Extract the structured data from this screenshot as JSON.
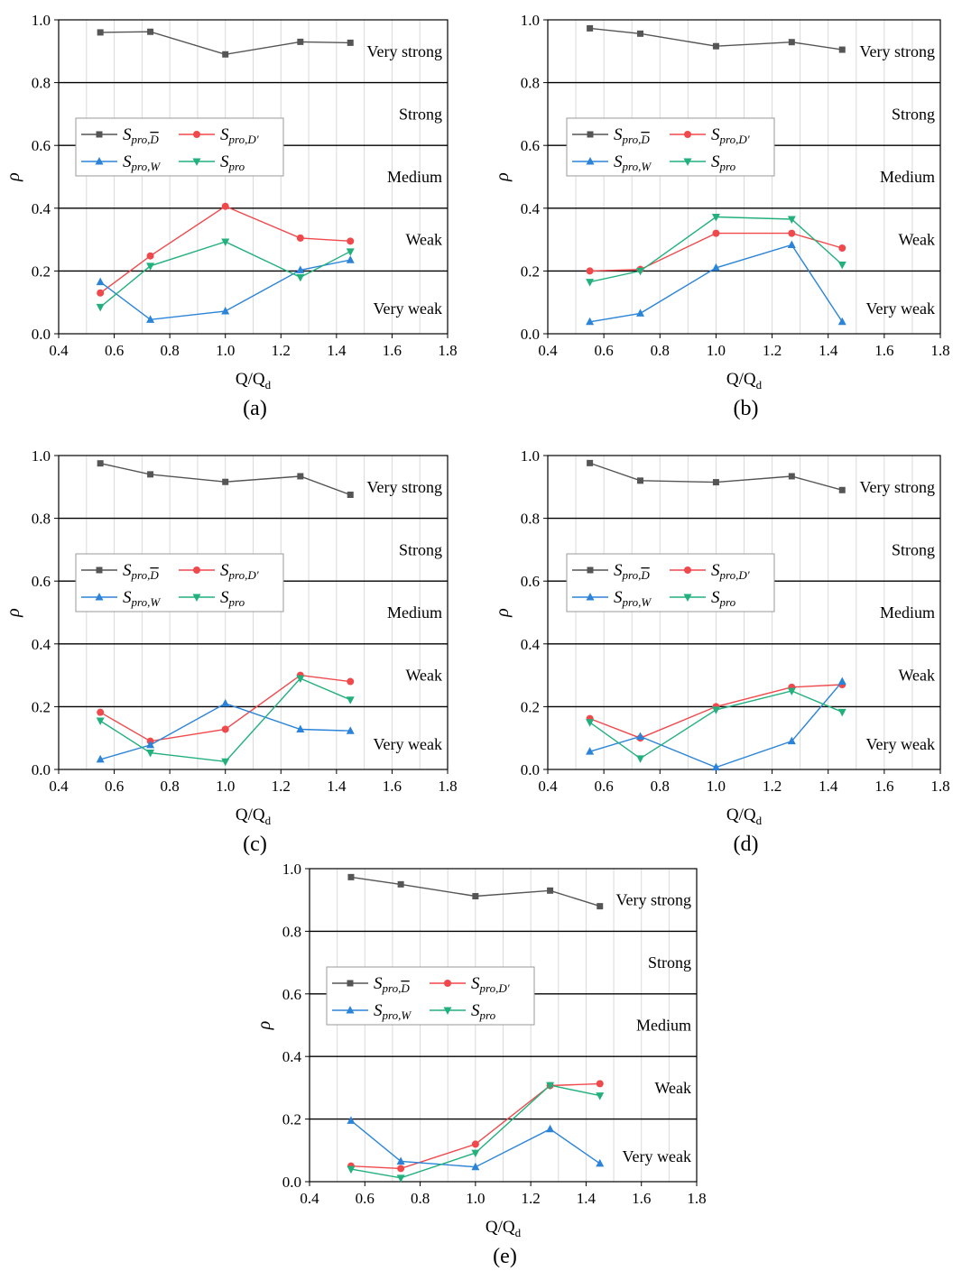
{
  "colors": {
    "s_dbar": "#555555",
    "s_dprime": "#f0494c",
    "s_w": "#2b84d8",
    "s_pro": "#22b07d",
    "band_line": "#000000",
    "grid": "#d9d9d9"
  },
  "legend": [
    {
      "key": "s_dbar",
      "marker": "square",
      "base": "S",
      "sub": "pro,",
      "subtail": "D",
      "overline": true
    },
    {
      "key": "s_dprime",
      "marker": "circle",
      "base": "S",
      "sub": "pro,D'",
      "subtail": "",
      "overline": false
    },
    {
      "key": "s_w",
      "marker": "triangle-up",
      "base": "S",
      "sub": "pro,W",
      "subtail": "",
      "overline": false
    },
    {
      "key": "s_pro",
      "marker": "triangle-down",
      "base": "S",
      "sub": "pro",
      "subtail": "",
      "overline": false
    }
  ],
  "chart_data": [
    {
      "type": "line",
      "panel_label": "(a)",
      "xlabel": "Q/Q",
      "xlabel_sub": "d",
      "ylabel": "ρ",
      "xlim": [
        0.4,
        1.8
      ],
      "ylim": [
        0.0,
        1.0
      ],
      "xticks": [
        "0.4",
        "0.6",
        "0.8",
        "1.0",
        "1.2",
        "1.4",
        "1.6",
        "1.8"
      ],
      "yticks": [
        "0.0",
        "0.2",
        "0.4",
        "0.6",
        "0.8",
        "1.0"
      ],
      "bands": [
        {
          "label": "Very strong",
          "y": 0.9
        },
        {
          "label": "Strong",
          "y": 0.7
        },
        {
          "label": "Medium",
          "y": 0.5
        },
        {
          "label": "Weak",
          "y": 0.3
        },
        {
          "label": "Very weak",
          "y": 0.08
        }
      ],
      "band_thresholds": [
        0.2,
        0.4,
        0.6,
        0.8
      ],
      "x": [
        0.55,
        0.73,
        1.0,
        1.27,
        1.45
      ],
      "series": [
        {
          "key": "s_dbar",
          "values": [
            0.96,
            0.962,
            0.89,
            0.93,
            0.927
          ]
        },
        {
          "key": "s_dprime",
          "values": [
            0.13,
            0.248,
            0.406,
            0.305,
            0.295
          ]
        },
        {
          "key": "s_w",
          "values": [
            0.165,
            0.045,
            0.072,
            0.203,
            0.235
          ]
        },
        {
          "key": "s_pro",
          "values": [
            0.085,
            0.216,
            0.293,
            0.18,
            0.262
          ]
        }
      ]
    },
    {
      "type": "line",
      "panel_label": "(b)",
      "xlabel": "Q/Q",
      "xlabel_sub": "d",
      "ylabel": "ρ",
      "xlim": [
        0.4,
        1.8
      ],
      "ylim": [
        0.0,
        1.0
      ],
      "xticks": [
        "0.4",
        "0.6",
        "0.8",
        "1.0",
        "1.2",
        "1.4",
        "1.6",
        "1.8"
      ],
      "yticks": [
        "0.0",
        "0.2",
        "0.4",
        "0.6",
        "0.8",
        "1.0"
      ],
      "bands": [
        {
          "label": "Very strong",
          "y": 0.9
        },
        {
          "label": "Strong",
          "y": 0.7
        },
        {
          "label": "Medium",
          "y": 0.5
        },
        {
          "label": "Weak",
          "y": 0.3
        },
        {
          "label": "Very weak",
          "y": 0.08
        }
      ],
      "band_thresholds": [
        0.2,
        0.4,
        0.6,
        0.8
      ],
      "x": [
        0.55,
        0.73,
        1.0,
        1.27,
        1.45
      ],
      "series": [
        {
          "key": "s_dbar",
          "values": [
            0.973,
            0.956,
            0.916,
            0.929,
            0.905
          ]
        },
        {
          "key": "s_dprime",
          "values": [
            0.2,
            0.205,
            0.32,
            0.32,
            0.273
          ]
        },
        {
          "key": "s_w",
          "values": [
            0.038,
            0.065,
            0.21,
            0.283,
            0.038
          ]
        },
        {
          "key": "s_pro",
          "values": [
            0.165,
            0.2,
            0.372,
            0.365,
            0.22
          ]
        }
      ]
    },
    {
      "type": "line",
      "panel_label": "(c)",
      "xlabel": "Q/Q",
      "xlabel_sub": "d",
      "ylabel": "ρ",
      "xlim": [
        0.4,
        1.8
      ],
      "ylim": [
        0.0,
        1.0
      ],
      "xticks": [
        "0.4",
        "0.6",
        "0.8",
        "1.0",
        "1.2",
        "1.4",
        "1.6",
        "1.8"
      ],
      "yticks": [
        "0.0",
        "0.2",
        "0.4",
        "0.6",
        "0.8",
        "1.0"
      ],
      "bands": [
        {
          "label": "Very strong",
          "y": 0.9
        },
        {
          "label": "Strong",
          "y": 0.7
        },
        {
          "label": "Medium",
          "y": 0.5
        },
        {
          "label": "Weak",
          "y": 0.3
        },
        {
          "label": "Very weak",
          "y": 0.08
        }
      ],
      "band_thresholds": [
        0.2,
        0.4,
        0.6,
        0.8
      ],
      "x": [
        0.55,
        0.73,
        1.0,
        1.27,
        1.45
      ],
      "series": [
        {
          "key": "s_dbar",
          "values": [
            0.975,
            0.94,
            0.916,
            0.934,
            0.875
          ]
        },
        {
          "key": "s_dprime",
          "values": [
            0.182,
            0.09,
            0.128,
            0.3,
            0.28
          ]
        },
        {
          "key": "s_w",
          "values": [
            0.032,
            0.078,
            0.21,
            0.128,
            0.123
          ]
        },
        {
          "key": "s_pro",
          "values": [
            0.155,
            0.053,
            0.025,
            0.29,
            0.222
          ]
        }
      ]
    },
    {
      "type": "line",
      "panel_label": "(d)",
      "xlabel": "Q/Q",
      "xlabel_sub": "d",
      "ylabel": "ρ",
      "xlim": [
        0.4,
        1.8
      ],
      "ylim": [
        0.0,
        1.0
      ],
      "xticks": [
        "0.4",
        "0.6",
        "0.8",
        "1.0",
        "1.2",
        "1.4",
        "1.6",
        "1.8"
      ],
      "yticks": [
        "0.0",
        "0.2",
        "0.4",
        "0.6",
        "0.8",
        "1.0"
      ],
      "bands": [
        {
          "label": "Very strong",
          "y": 0.9
        },
        {
          "label": "Strong",
          "y": 0.7
        },
        {
          "label": "Medium",
          "y": 0.5
        },
        {
          "label": "Weak",
          "y": 0.3
        },
        {
          "label": "Very weak",
          "y": 0.08
        }
      ],
      "band_thresholds": [
        0.2,
        0.4,
        0.6,
        0.8
      ],
      "x": [
        0.55,
        0.73,
        1.0,
        1.27,
        1.45
      ],
      "series": [
        {
          "key": "s_dbar",
          "values": [
            0.976,
            0.92,
            0.915,
            0.934,
            0.89
          ]
        },
        {
          "key": "s_dprime",
          "values": [
            0.162,
            0.1,
            0.2,
            0.262,
            0.27
          ]
        },
        {
          "key": "s_w",
          "values": [
            0.057,
            0.105,
            0.007,
            0.09,
            0.28
          ]
        },
        {
          "key": "s_pro",
          "values": [
            0.15,
            0.035,
            0.19,
            0.25,
            0.183
          ]
        }
      ]
    },
    {
      "type": "line",
      "panel_label": "(e)",
      "xlabel": "Q/Q",
      "xlabel_sub": "d",
      "ylabel": "ρ",
      "xlim": [
        0.4,
        1.8
      ],
      "ylim": [
        0.0,
        1.0
      ],
      "xticks": [
        "0.4",
        "0.6",
        "0.8",
        "1.0",
        "1.2",
        "1.4",
        "1.6",
        "1.8"
      ],
      "yticks": [
        "0.0",
        "0.2",
        "0.4",
        "0.6",
        "0.8",
        "1.0"
      ],
      "bands": [
        {
          "label": "Very strong",
          "y": 0.9
        },
        {
          "label": "Strong",
          "y": 0.7
        },
        {
          "label": "Medium",
          "y": 0.5
        },
        {
          "label": "Weak",
          "y": 0.3
        },
        {
          "label": "Very weak",
          "y": 0.08
        }
      ],
      "band_thresholds": [
        0.2,
        0.4,
        0.6,
        0.8
      ],
      "x": [
        0.55,
        0.73,
        1.0,
        1.27,
        1.45
      ],
      "series": [
        {
          "key": "s_dbar",
          "values": [
            0.973,
            0.95,
            0.912,
            0.93,
            0.88
          ]
        },
        {
          "key": "s_dprime",
          "values": [
            0.05,
            0.042,
            0.12,
            0.307,
            0.313
          ]
        },
        {
          "key": "s_w",
          "values": [
            0.195,
            0.065,
            0.047,
            0.168,
            0.058
          ]
        },
        {
          "key": "s_pro",
          "values": [
            0.04,
            0.012,
            0.092,
            0.308,
            0.275
          ]
        }
      ]
    }
  ]
}
